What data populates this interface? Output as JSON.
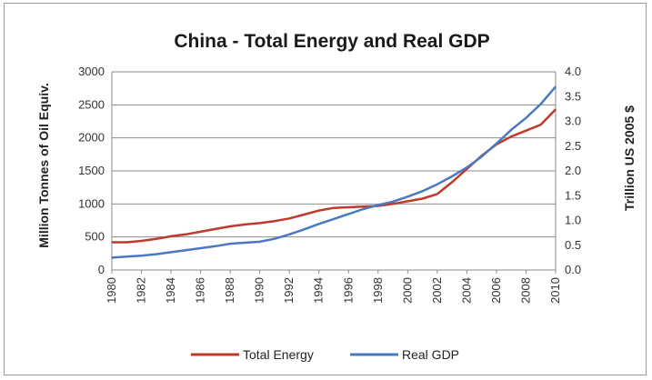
{
  "chart_data": {
    "type": "line",
    "title": "China - Total Energy and Real GDP",
    "ylabel": "Million Tonnes of Oil Equiv.",
    "y2label": "Trillion US 2005 $",
    "xlabel": "",
    "x": [
      1980,
      1981,
      1982,
      1983,
      1984,
      1985,
      1986,
      1987,
      1988,
      1989,
      1990,
      1991,
      1992,
      1993,
      1994,
      1995,
      1996,
      1997,
      1998,
      1999,
      2000,
      2001,
      2002,
      2003,
      2004,
      2005,
      2006,
      2007,
      2008,
      2009,
      2010
    ],
    "xticks": [
      "1980",
      "1982",
      "1984",
      "1986",
      "1988",
      "1990",
      "1992",
      "1994",
      "1996",
      "1998",
      "2000",
      "2002",
      "2004",
      "2006",
      "2008",
      "2010"
    ],
    "ylim": [
      0,
      3000
    ],
    "y2lim": [
      0,
      4.0
    ],
    "yticks": [
      "0",
      "500",
      "1000",
      "1500",
      "2000",
      "2500",
      "3000"
    ],
    "y2ticks": [
      "0.0",
      "0.5",
      "1.0",
      "1.5",
      "2.0",
      "2.5",
      "3.0",
      "3.5",
      "4.0"
    ],
    "grid": true,
    "legend": "bottom",
    "series": [
      {
        "name": "Total Energy",
        "axis": "left",
        "color": "#c0392b",
        "values": [
          420,
          420,
          440,
          470,
          510,
          540,
          580,
          620,
          660,
          690,
          710,
          740,
          780,
          840,
          900,
          940,
          950,
          960,
          970,
          1000,
          1040,
          1080,
          1150,
          1330,
          1530,
          1730,
          1900,
          2020,
          2110,
          2200,
          2430
        ]
      },
      {
        "name": "Real GDP",
        "axis": "right",
        "color": "#4a78c2",
        "values": [
          0.25,
          0.27,
          0.29,
          0.32,
          0.36,
          0.4,
          0.44,
          0.48,
          0.53,
          0.55,
          0.57,
          0.63,
          0.72,
          0.82,
          0.93,
          1.03,
          1.13,
          1.23,
          1.31,
          1.38,
          1.48,
          1.59,
          1.73,
          1.89,
          2.07,
          2.29,
          2.55,
          2.83,
          3.07,
          3.35,
          3.7
        ]
      }
    ]
  }
}
